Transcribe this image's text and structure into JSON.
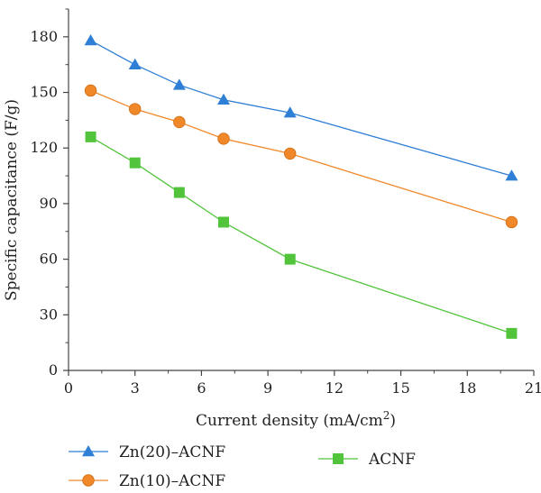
{
  "chart_data": {
    "type": "line",
    "xlabel": "Current density (mA/cm",
    "xlabel_sup": "2",
    "xlabel_close": ")",
    "ylabel": "Specific capacitance (F/g)",
    "xlim": [
      0,
      21
    ],
    "ylim": [
      0,
      195
    ],
    "x_ticks": [
      0,
      3,
      6,
      9,
      12,
      15,
      18,
      21
    ],
    "y_ticks": [
      0,
      30,
      60,
      90,
      120,
      150,
      180
    ],
    "x_tick_labels": [
      "0",
      "3",
      "6",
      "9",
      "12",
      "15",
      "18",
      "21"
    ],
    "y_tick_labels": [
      "0",
      "30",
      "60",
      "90",
      "120",
      "150",
      "180"
    ],
    "grid": false,
    "legend_position": "bottom",
    "series": [
      {
        "name": "Zn(20)–ACNF",
        "color": "#2f7fd6",
        "marker": "triangle",
        "x": [
          1,
          3,
          5,
          7,
          10,
          20
        ],
        "y": [
          178,
          165,
          154,
          146,
          139,
          105
        ]
      },
      {
        "name": "Zn(10)–ACNF",
        "color": "#f0882a",
        "marker": "circle",
        "x": [
          1,
          3,
          5,
          7,
          10,
          20
        ],
        "y": [
          151,
          141,
          134,
          125,
          117,
          80
        ]
      },
      {
        "name": "ACNF",
        "color": "#52c43c",
        "marker": "square",
        "x": [
          1,
          3,
          5,
          7,
          10,
          20
        ],
        "y": [
          126,
          112,
          96,
          80,
          60,
          20
        ]
      }
    ]
  }
}
